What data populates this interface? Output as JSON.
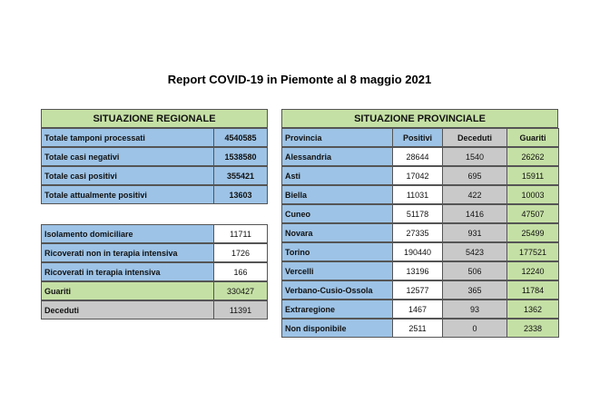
{
  "title": "Report COVID-19 in Piemonte al 8 maggio 2021",
  "regional": {
    "title": "SITUAZIONE REGIONALE",
    "rows": [
      [
        "Totale tamponi processati",
        4540585
      ],
      [
        "Totale casi negativi",
        1538580
      ],
      [
        "Totale casi positivi",
        355421
      ],
      [
        "Totale attualmente positivi",
        13603
      ]
    ],
    "detail_rows": [
      [
        "Isolamento domiciliare",
        11711
      ],
      [
        "Ricoverati non in terapia intensiva",
        1726
      ],
      [
        "Ricoverati in terapia intensiva",
        166
      ],
      [
        "Guariti",
        330427
      ],
      [
        "Deceduti",
        11391
      ]
    ]
  },
  "provincial": {
    "title": "SITUAZIONE PROVINCIALE",
    "columns": [
      "Provincia",
      "Positivi",
      "Deceduti",
      "Guariti"
    ],
    "rows": [
      [
        "Alessandria",
        28644,
        1540,
        26262
      ],
      [
        "Asti",
        17042,
        695,
        15911
      ],
      [
        "Biella",
        11031,
        422,
        10003
      ],
      [
        "Cuneo",
        51178,
        1416,
        47507
      ],
      [
        "Novara",
        27335,
        931,
        25499
      ],
      [
        "Torino",
        190440,
        5423,
        177521
      ],
      [
        "Vercelli",
        13196,
        506,
        12240
      ],
      [
        "Verbano-Cusio-Ossola",
        12577,
        365,
        11784
      ],
      [
        "Extraregione",
        1467,
        93,
        1362
      ],
      [
        "Non disponibile",
        2511,
        0,
        2338
      ]
    ]
  }
}
